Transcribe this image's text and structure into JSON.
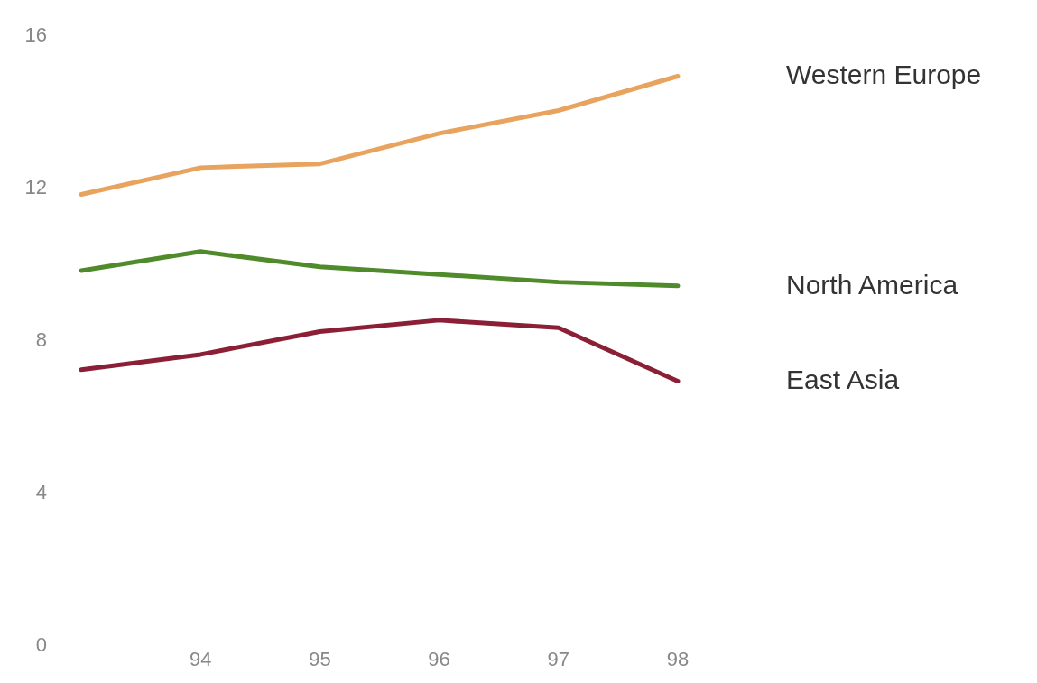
{
  "chart_data": {
    "type": "line",
    "categories": [
      null,
      "94",
      "95",
      "96",
      "97",
      "98"
    ],
    "ylim": [
      0,
      16
    ],
    "yticks": [
      0,
      4,
      8,
      12,
      16
    ],
    "grid": false,
    "legend": false,
    "marker": "none",
    "line_style": "solid",
    "series": [
      {
        "name": "Western Europe",
        "color": "#e8a35e",
        "values": [
          11.8,
          12.5,
          12.6,
          13.4,
          14.0,
          14.9
        ]
      },
      {
        "name": "North America",
        "color": "#4f8a2b",
        "values": [
          9.8,
          10.3,
          9.9,
          9.7,
          9.5,
          9.4
        ]
      },
      {
        "name": "East Asia",
        "color": "#8b1f35",
        "values": [
          7.2,
          7.6,
          8.2,
          8.5,
          8.3,
          6.9
        ]
      }
    ]
  }
}
